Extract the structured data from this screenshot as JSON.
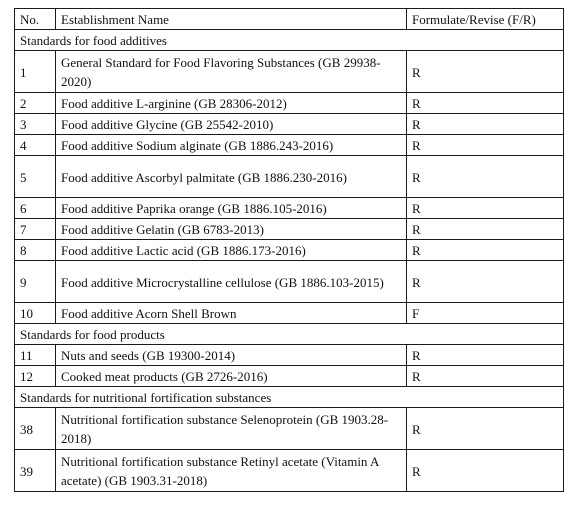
{
  "headers": {
    "no": "No.",
    "name": "Establishment Name",
    "fr": "Formulate/Revise (F/R)"
  },
  "sections": [
    {
      "title": "Standards for food additives",
      "rows": [
        {
          "no": "1",
          "name": "General Standard for Food Flavoring Substances (GB 29938-2020)",
          "fr": "R"
        },
        {
          "no": "2",
          "name": "Food additive L-arginine (GB 28306-2012)",
          "fr": "R"
        },
        {
          "no": "3",
          "name": "Food additive Glycine (GB 25542-2010)",
          "fr": "R"
        },
        {
          "no": "4",
          "name": "Food additive Sodium alginate (GB 1886.243-2016)",
          "fr": "R"
        },
        {
          "no": "5",
          "name": "Food additive Ascorbyl palmitate (GB 1886.230-2016)",
          "fr": "R"
        },
        {
          "no": "6",
          "name": "Food additive Paprika orange (GB 1886.105-2016)",
          "fr": "R"
        },
        {
          "no": "7",
          "name": "Food additive Gelatin (GB 6783-2013)",
          "fr": "R"
        },
        {
          "no": "8",
          "name": "Food additive Lactic acid (GB 1886.173-2016)",
          "fr": "R"
        },
        {
          "no": "9",
          "name": "Food additive Microcrystalline cellulose (GB 1886.103-2015)",
          "fr": "R"
        },
        {
          "no": "10",
          "name": "Food additive Acorn Shell Brown",
          "fr": "F"
        }
      ]
    },
    {
      "title": "Standards for food products",
      "rows": [
        {
          "no": "11",
          "name": "Nuts and seeds (GB 19300-2014)",
          "fr": "R"
        },
        {
          "no": "12",
          "name": "Cooked meat products (GB 2726-2016)",
          "fr": "R"
        }
      ]
    },
    {
      "title": "Standards for nutritional fortification substances",
      "rows": [
        {
          "no": "38",
          "name": "Nutritional fortification substance Selenoprotein (GB 1903.28-2018)",
          "fr": "R"
        },
        {
          "no": "39",
          "name": "Nutritional fortification substance Retinyl acetate (Vitamin A acetate) (GB 1903.31-2018)",
          "fr": "R"
        }
      ]
    }
  ]
}
